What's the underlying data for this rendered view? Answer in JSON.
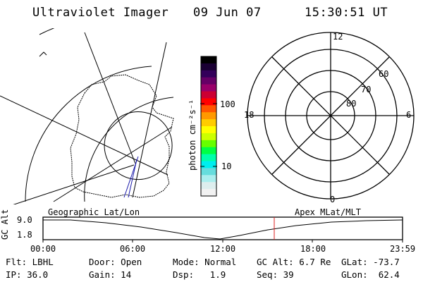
{
  "header": {
    "title": "Ultraviolet Imager",
    "date": "09 Jun 07",
    "time": "15:30:51 UT"
  },
  "left_panel": {
    "label": "Geographic Lat/Lon"
  },
  "colorbar": {
    "unit_label": "photon cm⁻²s⁻¹",
    "ticks": [
      "100",
      "10"
    ],
    "colors": [
      "#000000",
      "#1a0033",
      "#33005a",
      "#660066",
      "#99006a",
      "#cc0033",
      "#ff0000",
      "#ff5500",
      "#ff9900",
      "#ffcc00",
      "#ffff00",
      "#ccff00",
      "#66ff00",
      "#00ff44",
      "#00ffaa",
      "#00eeee",
      "#66dddd",
      "#aaeeee",
      "#ddeeee",
      "#f2f2f2"
    ]
  },
  "right_panel": {
    "label": "Apex MLat/MLT",
    "mlt_labels": [
      "12",
      "18",
      "6",
      "0"
    ],
    "mlat_labels": [
      "60",
      "70",
      "80"
    ]
  },
  "timeline": {
    "ylabel": "GC Alt",
    "ytick_top": "9.0",
    "ytick_bottom": "1.8",
    "xticks": [
      "00:00",
      "06:00",
      "12:00",
      "18:00",
      "23:59"
    ],
    "marker_color": "#dd2222"
  },
  "footer": {
    "flt_label": "Flt:",
    "flt_value": "LBHL",
    "ip_label": "IP:",
    "ip_value": "36.0",
    "door_label": "Door:",
    "door_value": "Open",
    "gain_label": "Gain:",
    "gain_value": "14",
    "mode_label": "Mode:",
    "mode_value": "Normal",
    "dsp_label": "Dsp:",
    "dsp_value": "1.9",
    "gcalt_label": "GC Alt:",
    "gcalt_value": "6.7 Re",
    "seq_label": "Seq:",
    "seq_value": "39",
    "glat_label": "GLat:",
    "glat_value": "-73.7",
    "glon_label": "GLon:",
    "glon_value": "62.4"
  }
}
